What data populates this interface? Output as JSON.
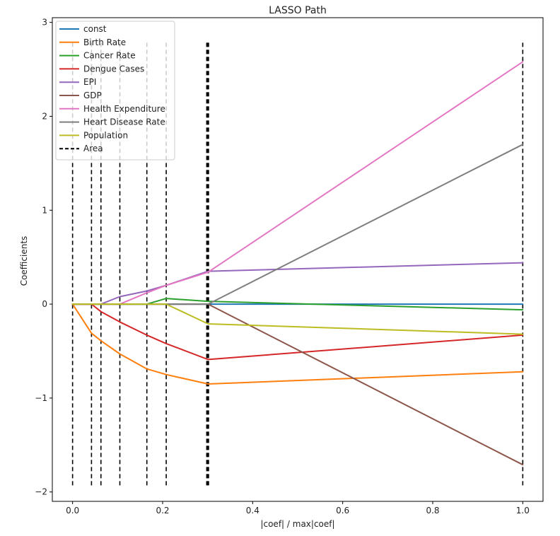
{
  "chart_data": {
    "type": "line",
    "title": "LASSO Path",
    "xlabel": "|coef| / max|coef|",
    "ylabel": "Coefficients",
    "xlim": [
      -0.045,
      1.045
    ],
    "ylim": [
      -2.1,
      3.05
    ],
    "xticks": [
      0.0,
      0.2,
      0.4,
      0.6,
      0.8,
      1.0
    ],
    "xtick_labels": [
      "0.0",
      "0.2",
      "0.4",
      "0.6",
      "0.8",
      "1.0"
    ],
    "yticks": [
      -2,
      -1,
      0,
      1,
      2,
      3
    ],
    "ytick_labels": [
      "−2",
      "−1",
      "0",
      "1",
      "2",
      "3"
    ],
    "grid": false,
    "legend_position": "top-left",
    "x": [
      0.0,
      0.042,
      0.063,
      0.105,
      0.165,
      0.208,
      0.301,
      1.0
    ],
    "series": [
      {
        "name": "const",
        "color": "#1f77b4",
        "values": [
          0,
          0,
          0,
          0,
          0,
          0,
          0,
          0
        ]
      },
      {
        "name": "Birth Rate",
        "color": "#ff7f0e",
        "values": [
          0,
          -0.31,
          -0.39,
          -0.53,
          -0.69,
          -0.75,
          -0.85,
          -0.72
        ]
      },
      {
        "name": "Cancer Rate",
        "color": "#2ca02c",
        "values": [
          0,
          0,
          0,
          0,
          0,
          0.06,
          0.03,
          -0.06
        ]
      },
      {
        "name": "Dengue Cases",
        "color": "#d62728",
        "values": [
          0,
          0,
          -0.08,
          -0.19,
          -0.33,
          -0.42,
          -0.59,
          -0.33
        ]
      },
      {
        "name": "EPI",
        "color": "#9467bd",
        "values": [
          0,
          0,
          0,
          0.08,
          0.14,
          0.2,
          0.35,
          0.44
        ]
      },
      {
        "name": "GDP",
        "color": "#8c564b",
        "values": [
          0,
          0,
          0,
          0,
          0,
          0,
          0,
          -1.71
        ]
      },
      {
        "name": "Health Expenditure",
        "color": "#e377c2",
        "values": [
          0,
          0,
          0,
          0,
          0.12,
          0.2,
          0.34,
          2.58
        ]
      },
      {
        "name": "Heart Disease Rate",
        "color": "#7f7f7f",
        "values": [
          0,
          0,
          0,
          0,
          0,
          0,
          0,
          1.7
        ]
      },
      {
        "name": "Population",
        "color": "#bcbd22",
        "values": [
          0,
          0,
          0,
          0,
          0,
          0,
          -0.21,
          -0.32
        ]
      }
    ],
    "vlines": {
      "name": "Area",
      "color": "#000000",
      "ymin": -1.93,
      "ymax": 2.79,
      "x": [
        0.0,
        0.042,
        0.063,
        0.105,
        0.165,
        0.208,
        0.298,
        0.3,
        0.302,
        1.0
      ]
    }
  }
}
